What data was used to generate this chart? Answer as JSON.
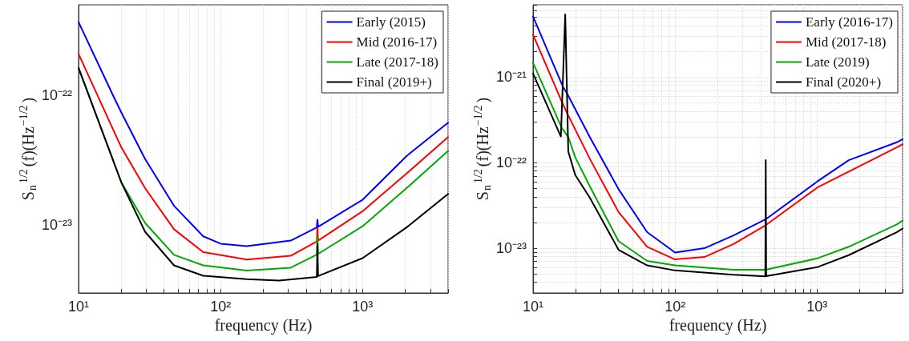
{
  "chart_data": [
    {
      "type": "line",
      "xlabel": "frequency (Hz)",
      "ylabel": "S$_{n}$$^{1/2}$(f)(Hz$^{−1/2}$)",
      "log": "xy",
      "grid": true,
      "legend": "top right",
      "marker": "none",
      "line_style": "solid",
      "xlim": [
        10,
        4000
      ],
      "ylim": [
        3e-24,
        5e-22
      ],
      "xticks": [
        {
          "value": 10,
          "label": "10¹"
        },
        {
          "value": 100,
          "label": "10²"
        },
        {
          "value": 1000,
          "label": "10³"
        }
      ],
      "yticks": [
        {
          "value": 1e-23,
          "label": "10⁻²³"
        },
        {
          "value": 1e-22,
          "label": "10⁻²²"
        }
      ],
      "series": [
        {
          "name": "Early (2015)",
          "color": "#0000ff",
          "x": [
            10,
            17.5,
            20,
            29.4,
            47,
            75.5,
            100,
            153,
            312,
            476,
            481,
            486,
            1000,
            2040,
            4000
          ],
          "values": [
            3.68e-22,
            1e-22,
            7.4e-23,
            3.24e-23,
            1.41e-23,
            8.2e-24,
            7.2e-24,
            6.9e-24,
            7.6e-24,
            9.6e-24,
            1.1e-23,
            9.7e-24,
            1.57e-23,
            3.41e-23,
            6.17e-23
          ]
        },
        {
          "name": "Mid (2016-17)",
          "color": "#ff0000",
          "x": [
            10,
            20,
            29.4,
            47,
            75.5,
            153,
            312,
            476,
            481,
            486,
            1000,
            2040,
            4000
          ],
          "values": [
            2.09e-22,
            3.98e-23,
            1.93e-23,
            9.3e-24,
            6.2e-24,
            5.43e-24,
            5.8e-24,
            7.5e-24,
            9.6e-24,
            7.6e-24,
            1.28e-23,
            2.5e-23,
            4.77e-23
          ]
        },
        {
          "name": "Late (2017-18)",
          "color": "#00aa00",
          "x": [
            10,
            20,
            29.4,
            47,
            75.5,
            153,
            312,
            476,
            481,
            486,
            1000,
            2040,
            4000
          ],
          "values": [
            1.63e-22,
            2.14e-23,
            1.04e-23,
            5.9e-24,
            4.9e-24,
            4.46e-24,
            4.7e-24,
            5.93e-24,
            8.2e-24,
            6e-24,
            9.8e-24,
            1.93e-23,
            3.74e-23
          ]
        },
        {
          "name": "Final (2019+)",
          "color": "#000000",
          "x": [
            10,
            20,
            29.4,
            47,
            75.5,
            153,
            258,
            476,
            481,
            486,
            1000,
            2040,
            4000
          ],
          "values": [
            1.63e-22,
            2.14e-23,
            8.9e-24,
            4.9e-24,
            4.07e-24,
            3.84e-24,
            3.74e-24,
            3.99e-24,
            7.2e-24,
            4.05e-24,
            5.57e-24,
            9.6e-24,
            1.74e-23
          ]
        }
      ]
    },
    {
      "type": "line",
      "xlabel": "frequency (Hz)",
      "ylabel": "S$_{n}$$^{1/2}$(f)(Hz$^{−1/2}$)",
      "log": "xy",
      "grid": true,
      "legend": "top right",
      "marker": "none",
      "line_style": "solid",
      "xlim": [
        10,
        4000
      ],
      "ylim": [
        3e-24,
        7e-21
      ],
      "xticks": [
        {
          "value": 10,
          "label": "10¹"
        },
        {
          "value": 100,
          "label": "10²"
        },
        {
          "value": 1000,
          "label": "10³"
        }
      ],
      "yticks": [
        {
          "value": 1e-23,
          "label": "10⁻²³"
        },
        {
          "value": 1e-22,
          "label": "10⁻²²"
        },
        {
          "value": 1e-21,
          "label": "10⁻²¹"
        }
      ],
      "series": [
        {
          "name": "Early (2016-17)",
          "color": "#0000ff",
          "x": [
            10,
            16.3,
            17.3,
            25.1,
            40,
            63.6,
            100,
            161,
            258,
            435,
            1000,
            1670,
            3640,
            4000
          ],
          "values": [
            5.1e-21,
            7.6e-22,
            6.5e-22,
            1.99e-22,
            4.9e-23,
            1.54e-23,
            8.9e-24,
            1e-23,
            1.41e-23,
            2.18e-23,
            6e-23,
            1.07e-22,
            1.73e-22,
            1.88e-22
          ]
        },
        {
          "name": "Mid (2017-18)",
          "color": "#ff0000",
          "x": [
            10,
            16.1,
            17.3,
            25.1,
            40,
            63.6,
            100,
            161,
            258,
            435,
            1000,
            3640,
            4000
          ],
          "values": [
            3.13e-21,
            4.97e-22,
            3.85e-22,
            1.11e-22,
            2.65e-23,
            1.04e-23,
            7.4e-24,
            7.9e-24,
            1.12e-23,
            1.86e-23,
            5.1e-23,
            1.51e-22,
            1.64e-22
          ]
        },
        {
          "name": "Late (2019)",
          "color": "#00aa00",
          "x": [
            10,
            15.9,
            17.7,
            19.8,
            25.1,
            40,
            63.6,
            100,
            258,
            435,
            1000,
            1670,
            3640,
            4000
          ],
          "values": [
            1.47e-21,
            2.56e-22,
            2e-22,
            1.16e-22,
            5.3e-23,
            1.21e-23,
            7.1e-24,
            6.3e-24,
            5.6e-24,
            5.6e-24,
            7.6e-24,
            1.04e-23,
            1.9e-23,
            2.1e-23
          ]
        },
        {
          "name": "Final (2020+)",
          "color": "#000000",
          "x": [
            10,
            15.7,
            16.85,
            17.7,
            19.8,
            25.1,
            40,
            63.6,
            100,
            258,
            432,
            435,
            438,
            1000,
            1670,
            3640,
            4000
          ],
          "values": [
            1.1e-21,
            2.02e-22,
            5.4e-21,
            1.35e-22,
            7.2e-23,
            3.9e-23,
            9.6e-24,
            6.3e-24,
            5.5e-24,
            4.9e-24,
            4.7e-24,
            1.07e-22,
            4.72e-24,
            6e-24,
            8.3e-24,
            1.54e-23,
            1.7e-23
          ]
        }
      ]
    }
  ]
}
